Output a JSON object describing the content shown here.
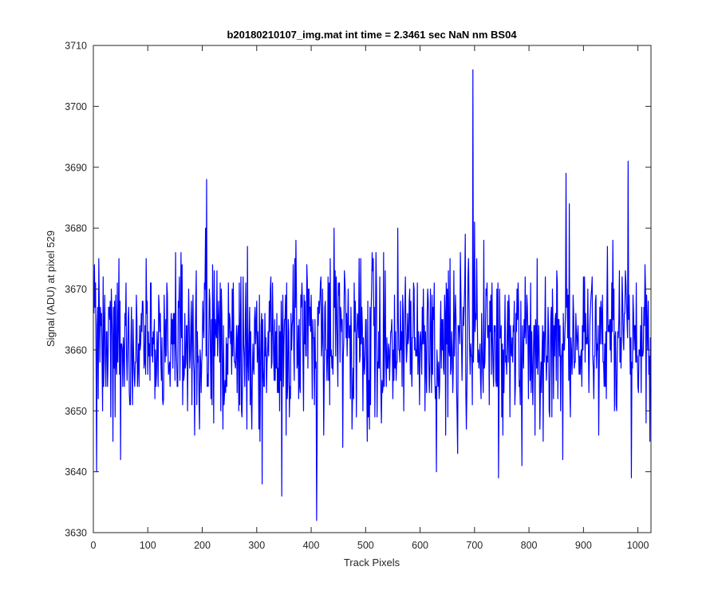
{
  "chart_data": {
    "type": "line",
    "title": "b20180210107_img.mat int time = 2.3461 sec  NaN nm BS04",
    "xlabel": "Track Pixels",
    "ylabel": "Signal (ADU) at pixel 529",
    "xlim": [
      0,
      1024
    ],
    "ylim": [
      3630,
      3710
    ],
    "xticks": [
      0,
      100,
      200,
      300,
      400,
      500,
      600,
      700,
      800,
      900,
      1000
    ],
    "yticks": [
      3630,
      3640,
      3650,
      3660,
      3670,
      3680,
      3690,
      3700,
      3710
    ],
    "grid": false,
    "legend": "none",
    "series_color": "#0000ff",
    "noise_model": {
      "n_points": 1024,
      "x_start": 1,
      "mean": 3661.5,
      "std": 7.0,
      "min": 3632,
      "max": 3706
    },
    "notable_points": [
      {
        "x": 208,
        "y": 3688
      },
      {
        "x": 310,
        "y": 3638
      },
      {
        "x": 410,
        "y": 3632
      },
      {
        "x": 697,
        "y": 3706
      },
      {
        "x": 868,
        "y": 3689
      },
      {
        "x": 982,
        "y": 3691
      },
      {
        "x": 1022,
        "y": 3645
      }
    ]
  }
}
